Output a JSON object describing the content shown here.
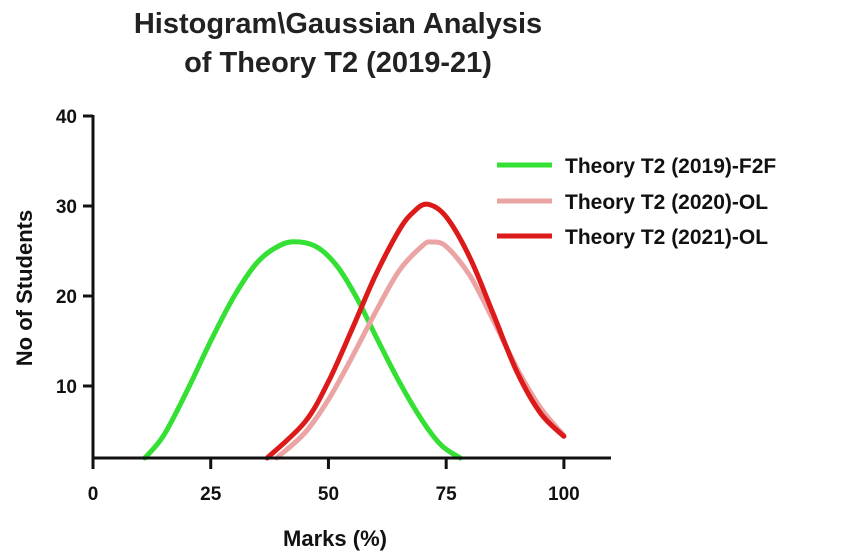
{
  "chart_data": {
    "type": "line",
    "title_lines": [
      "Histogram\\Gaussian Analysis",
      "of Theory T2 (2019-21)"
    ],
    "xlabel": "Marks (%)",
    "ylabel": "No of Students",
    "xlim": [
      0,
      110
    ],
    "ylim": [
      2,
      40
    ],
    "x_ticks": [
      0,
      25,
      50,
      75,
      100
    ],
    "y_ticks": [
      10,
      20,
      30,
      40
    ],
    "legend_position": "top-right",
    "grid": false,
    "series": [
      {
        "name": "Theory T2 (2019)-F2F",
        "color": "#33e033",
        "x": [
          11,
          15,
          20,
          25,
          30,
          35,
          40,
          44,
          48,
          52,
          56,
          60,
          65,
          70,
          74,
          78
        ],
        "y": [
          2.0,
          4.5,
          9.5,
          15.0,
          20.0,
          23.8,
          25.7,
          26.0,
          25.3,
          23.2,
          19.8,
          15.6,
          10.5,
          6.1,
          3.4,
          2.0
        ]
      },
      {
        "name": "Theory T2 (2020)-OL",
        "color": "#eba4a4",
        "x": [
          39,
          45,
          50,
          55,
          60,
          65,
          70,
          72,
          75,
          80,
          85,
          90,
          95,
          100
        ],
        "y": [
          2.0,
          4.8,
          8.5,
          13.2,
          18.2,
          22.8,
          25.6,
          26.0,
          25.5,
          22.3,
          17.3,
          12.0,
          7.6,
          4.5
        ]
      },
      {
        "name": "Theory T2 (2021)-OL",
        "color": "#dd1a1a",
        "x": [
          37,
          45,
          50,
          55,
          60,
          65,
          68,
          71,
          75,
          80,
          85,
          90,
          95,
          100
        ],
        "y": [
          2.0,
          6.0,
          10.5,
          16.3,
          22.3,
          27.3,
          29.3,
          30.2,
          28.8,
          24.3,
          18.0,
          11.6,
          7.0,
          4.4
        ]
      }
    ]
  }
}
